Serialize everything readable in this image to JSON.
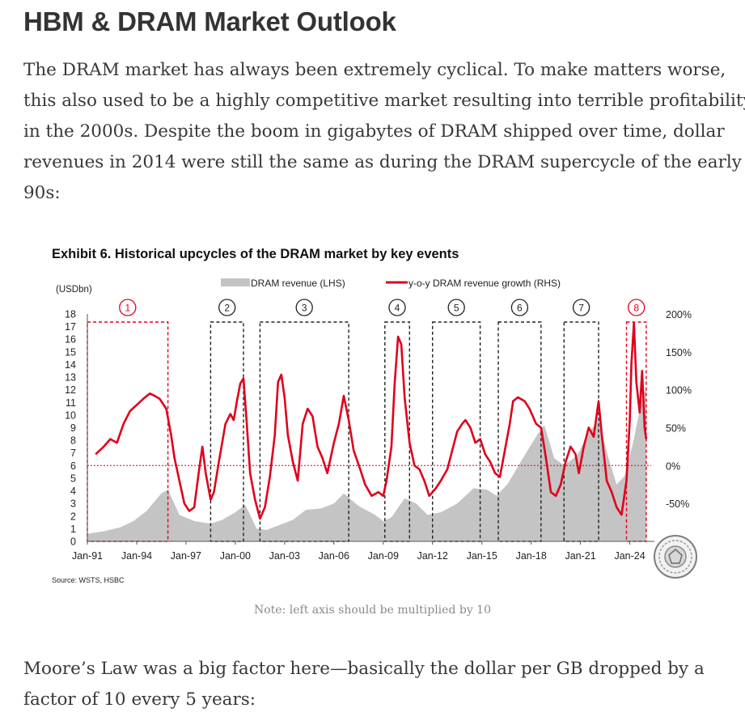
{
  "article": {
    "heading": "HBM & DRAM Market Outlook",
    "para1_lines": [
      "The DRAM market has always been extremely cyclical. To make matters worse,",
      "this also used to be a highly competitive market resulting into terrible profitability",
      "in the 2000s. Despite the boom in gigabytes of DRAM shipped over time, dollar",
      "revenues in 2014 were still the same as during the DRAM supercycle of the early",
      "90s:"
    ],
    "caption": "Note: left axis should be multiplied by 10",
    "para2_lines": [
      "Moore’s Law was a big factor here—basically the dollar per GB dropped by a",
      "factor of 10 every 5 years:"
    ]
  },
  "chart_data": {
    "type": "bar+line",
    "title": "Exhibit 6. Historical upcycles of the DRAM market by key events",
    "left_unit": "(USDbn)",
    "source": "Source: WSTS, HSBC",
    "x_ticks": [
      "Jan-91",
      "Jan-94",
      "Jan-97",
      "Jan-00",
      "Jan-03",
      "Jan-06",
      "Jan-09",
      "Jan-12",
      "Jan-15",
      "Jan-18",
      "Jan-21",
      "Jan-24"
    ],
    "x_range": [
      1991.0,
      2025.3
    ],
    "y_left": {
      "range": [
        0,
        18
      ],
      "ticks": [
        "0",
        "1",
        "2",
        "3",
        "4",
        "5",
        "6",
        "7",
        "8",
        "9",
        "10",
        "11",
        "12",
        "13",
        "14",
        "15",
        "16",
        "17",
        "18"
      ]
    },
    "y_right": {
      "range": [
        -100,
        200
      ],
      "ticks": [
        "200%",
        "150%",
        "100%",
        "50%",
        "0%",
        "-50%",
        "%"
      ]
    },
    "legend": {
      "revenue": "DRAM revenue (LHS)",
      "growth": "y-o-y DRAM revenue growth (RHS)",
      "position": "top"
    },
    "colors": {
      "revenue": "#c4c4c4",
      "growth": "#e0001b",
      "upcycle_box": "#222222",
      "current_box": "#e0001b"
    },
    "upcycles": [
      {
        "label": "1",
        "start": 1991.0,
        "end": 1995.9,
        "highlight": true
      },
      {
        "label": "2",
        "start": 1998.5,
        "end": 2000.5,
        "highlight": false
      },
      {
        "label": "3",
        "start": 2001.5,
        "end": 2006.9,
        "highlight": false
      },
      {
        "label": "4",
        "start": 2009.1,
        "end": 2010.6,
        "highlight": false
      },
      {
        "label": "5",
        "start": 2012.0,
        "end": 2014.9,
        "highlight": false
      },
      {
        "label": "6",
        "start": 2016.0,
        "end": 2018.6,
        "highlight": false
      },
      {
        "label": "7",
        "start": 2020.0,
        "end": 2022.1,
        "highlight": false
      },
      {
        "label": "8",
        "start": 2023.8,
        "end": 2025.0,
        "highlight": true
      }
    ],
    "series": [
      {
        "name": "DRAM revenue (LHS)",
        "type": "area",
        "unit": "USDbn",
        "points": [
          [
            1991.0,
            0.6
          ],
          [
            1992.0,
            0.8
          ],
          [
            1993.0,
            1.1
          ],
          [
            1993.8,
            1.6
          ],
          [
            1994.6,
            2.4
          ],
          [
            1995.5,
            3.8
          ],
          [
            1995.9,
            4.1
          ],
          [
            1996.6,
            2.1
          ],
          [
            1997.5,
            1.6
          ],
          [
            1998.5,
            1.4
          ],
          [
            1999.2,
            1.7
          ],
          [
            2000.0,
            2.3
          ],
          [
            2000.6,
            2.9
          ],
          [
            2001.3,
            1.0
          ],
          [
            2001.9,
            0.9
          ],
          [
            2002.5,
            1.2
          ],
          [
            2003.5,
            1.7
          ],
          [
            2004.3,
            2.5
          ],
          [
            2005.2,
            2.6
          ],
          [
            2006.0,
            3.0
          ],
          [
            2006.6,
            3.8
          ],
          [
            2007.5,
            2.8
          ],
          [
            2008.5,
            2.1
          ],
          [
            2009.0,
            1.6
          ],
          [
            2009.5,
            1.9
          ],
          [
            2010.3,
            3.4
          ],
          [
            2011.0,
            3.0
          ],
          [
            2011.7,
            2.1
          ],
          [
            2012.5,
            2.3
          ],
          [
            2013.5,
            3.0
          ],
          [
            2014.5,
            4.2
          ],
          [
            2015.3,
            4.1
          ],
          [
            2015.9,
            3.6
          ],
          [
            2016.6,
            4.6
          ],
          [
            2017.5,
            6.6
          ],
          [
            2018.4,
            8.5
          ],
          [
            2018.8,
            9.2
          ],
          [
            2019.4,
            6.6
          ],
          [
            2020.0,
            6.0
          ],
          [
            2020.8,
            6.8
          ],
          [
            2021.5,
            8.6
          ],
          [
            2022.1,
            9.6
          ],
          [
            2022.7,
            6.6
          ],
          [
            2023.2,
            4.5
          ],
          [
            2023.7,
            5.2
          ],
          [
            2024.2,
            7.8
          ],
          [
            2024.8,
            11.6
          ],
          [
            2025.0,
            12.1
          ]
        ]
      },
      {
        "name": "y-o-y DRAM revenue growth (RHS)",
        "type": "line",
        "unit": "%",
        "points": [
          [
            1991.5,
            15
          ],
          [
            1992.0,
            25
          ],
          [
            1992.4,
            35
          ],
          [
            1992.8,
            30
          ],
          [
            1993.2,
            55
          ],
          [
            1993.6,
            72
          ],
          [
            1994.0,
            80
          ],
          [
            1994.4,
            88
          ],
          [
            1994.8,
            95
          ],
          [
            1995.1,
            92
          ],
          [
            1995.4,
            88
          ],
          [
            1995.8,
            75
          ],
          [
            1996.1,
            40
          ],
          [
            1996.3,
            10
          ],
          [
            1996.6,
            -20
          ],
          [
            1996.9,
            -50
          ],
          [
            1997.2,
            -60
          ],
          [
            1997.5,
            -55
          ],
          [
            1997.8,
            -5
          ],
          [
            1998.0,
            25
          ],
          [
            1998.2,
            -10
          ],
          [
            1998.5,
            -45
          ],
          [
            1998.7,
            -35
          ],
          [
            1999.0,
            5
          ],
          [
            1999.4,
            55
          ],
          [
            1999.7,
            68
          ],
          [
            1999.9,
            60
          ],
          [
            2000.1,
            85
          ],
          [
            2000.3,
            108
          ],
          [
            2000.5,
            115
          ],
          [
            2000.7,
            55
          ],
          [
            2000.9,
            -10
          ],
          [
            2001.2,
            -45
          ],
          [
            2001.5,
            -70
          ],
          [
            2001.8,
            -55
          ],
          [
            2002.1,
            -15
          ],
          [
            2002.4,
            40
          ],
          [
            2002.6,
            110
          ],
          [
            2002.8,
            120
          ],
          [
            2003.0,
            90
          ],
          [
            2003.2,
            40
          ],
          [
            2003.5,
            5
          ],
          [
            2003.8,
            -20
          ],
          [
            2004.1,
            55
          ],
          [
            2004.4,
            75
          ],
          [
            2004.7,
            65
          ],
          [
            2005.0,
            25
          ],
          [
            2005.3,
            10
          ],
          [
            2005.6,
            -10
          ],
          [
            2006.0,
            30
          ],
          [
            2006.3,
            55
          ],
          [
            2006.6,
            92
          ],
          [
            2006.9,
            60
          ],
          [
            2007.2,
            20
          ],
          [
            2007.6,
            -5
          ],
          [
            2007.9,
            -25
          ],
          [
            2008.3,
            -40
          ],
          [
            2008.7,
            -35
          ],
          [
            2009.0,
            -40
          ],
          [
            2009.2,
            -20
          ],
          [
            2009.5,
            25
          ],
          [
            2009.7,
            110
          ],
          [
            2009.9,
            170
          ],
          [
            2010.1,
            160
          ],
          [
            2010.3,
            90
          ],
          [
            2010.6,
            30
          ],
          [
            2010.9,
            0
          ],
          [
            2011.2,
            -5
          ],
          [
            2011.5,
            -20
          ],
          [
            2011.8,
            -40
          ],
          [
            2012.2,
            -30
          ],
          [
            2012.5,
            -20
          ],
          [
            2012.9,
            -5
          ],
          [
            2013.2,
            20
          ],
          [
            2013.5,
            45
          ],
          [
            2013.8,
            55
          ],
          [
            2014.0,
            60
          ],
          [
            2014.3,
            50
          ],
          [
            2014.6,
            30
          ],
          [
            2014.9,
            35
          ],
          [
            2015.2,
            15
          ],
          [
            2015.5,
            5
          ],
          [
            2015.8,
            -10
          ],
          [
            2016.1,
            -15
          ],
          [
            2016.4,
            20
          ],
          [
            2016.7,
            55
          ],
          [
            2016.9,
            85
          ],
          [
            2017.2,
            90
          ],
          [
            2017.6,
            85
          ],
          [
            2017.9,
            75
          ],
          [
            2018.3,
            55
          ],
          [
            2018.6,
            50
          ],
          [
            2018.9,
            10
          ],
          [
            2019.2,
            -35
          ],
          [
            2019.5,
            -40
          ],
          [
            2019.8,
            -25
          ],
          [
            2020.1,
            5
          ],
          [
            2020.4,
            25
          ],
          [
            2020.7,
            15
          ],
          [
            2020.9,
            -10
          ],
          [
            2021.2,
            25
          ],
          [
            2021.5,
            50
          ],
          [
            2021.8,
            38
          ],
          [
            2022.1,
            85
          ],
          [
            2022.3,
            40
          ],
          [
            2022.6,
            -20
          ],
          [
            2022.9,
            -35
          ],
          [
            2023.2,
            -55
          ],
          [
            2023.5,
            -65
          ],
          [
            2023.8,
            -20
          ],
          [
            2024.0,
            60
          ],
          [
            2024.1,
            135
          ],
          [
            2024.25,
            188
          ],
          [
            2024.4,
            110
          ],
          [
            2024.6,
            70
          ],
          [
            2024.75,
            125
          ],
          [
            2024.9,
            50
          ],
          [
            2025.0,
            35
          ]
        ]
      }
    ]
  }
}
